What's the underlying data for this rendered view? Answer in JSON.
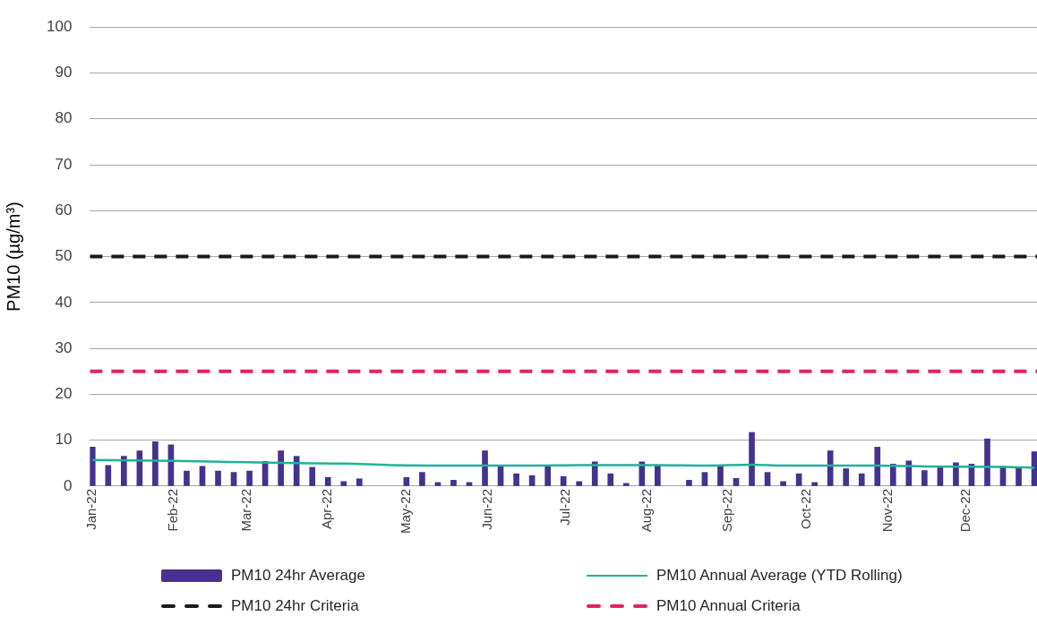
{
  "chart_data": {
    "type": "bar",
    "ylabel": "PM10 (µg/m³)",
    "x": [
      "2022-01-01",
      "2022-01-07",
      "2022-01-13",
      "2022-01-19",
      "2022-01-25",
      "2022-01-31",
      "2022-02-06",
      "2022-02-12",
      "2022-02-18",
      "2022-02-24",
      "2022-03-02",
      "2022-03-08",
      "2022-03-14",
      "2022-03-20",
      "2022-03-26",
      "2022-04-01",
      "2022-04-07",
      "2022-04-13",
      "2022-04-19",
      "2022-04-25",
      "2022-05-01",
      "2022-05-07",
      "2022-05-13",
      "2022-05-19",
      "2022-05-25",
      "2022-05-31",
      "2022-06-06",
      "2022-06-12",
      "2022-06-18",
      "2022-06-24",
      "2022-06-30",
      "2022-07-06",
      "2022-07-12",
      "2022-07-18",
      "2022-07-24",
      "2022-07-30",
      "2022-08-05",
      "2022-08-11",
      "2022-08-17",
      "2022-08-23",
      "2022-08-29",
      "2022-09-04",
      "2022-09-10",
      "2022-09-16",
      "2022-09-22",
      "2022-09-28",
      "2022-10-04",
      "2022-10-10",
      "2022-10-16",
      "2022-10-22",
      "2022-10-28",
      "2022-11-03",
      "2022-11-09",
      "2022-11-15",
      "2022-11-21",
      "2022-11-27",
      "2022-12-03",
      "2022-12-09",
      "2022-12-15",
      "2022-12-21",
      "2022-12-27"
    ],
    "series": [
      {
        "name": "PM10 24hr Average",
        "color": "#46318f",
        "values": [
          8.5,
          4.5,
          6.5,
          7.7,
          9.7,
          9.0,
          3.3,
          4.3,
          3.3,
          3.0,
          3.3,
          5.4,
          7.7,
          6.5,
          4.1,
          1.9,
          1.0,
          1.6,
          null,
          null,
          1.9,
          3.0,
          0.8,
          1.3,
          0.8,
          7.7,
          4.5,
          2.7,
          2.3,
          4.5,
          2.1,
          1.0,
          5.3,
          2.7,
          0.6,
          5.3,
          4.5,
          null,
          1.3,
          3.0,
          4.3,
          1.7,
          11.7,
          3.0,
          1.0,
          2.7,
          0.8,
          7.7,
          3.8,
          2.7,
          8.5,
          4.8,
          5.5,
          3.4,
          4.3,
          5.1,
          4.8,
          10.3,
          4.3,
          4.0,
          7.5
        ]
      },
      {
        "name": "PM10 Annual Average (YTD Rolling)",
        "type": "line",
        "color": "#1db39b",
        "x": [
          "2022-01-01",
          "2022-02-01",
          "2022-03-01",
          "2022-03-20",
          "2022-04-07",
          "2022-04-25",
          "2022-05-25",
          "2022-06-18",
          "2022-07-06",
          "2022-08-05",
          "2022-08-23",
          "2022-09-10",
          "2022-09-22",
          "2022-10-28",
          "2022-11-15",
          "2022-12-15",
          "2022-12-27"
        ],
        "values": [
          5.7,
          5.5,
          5.2,
          5.0,
          4.9,
          4.6,
          4.5,
          4.5,
          4.6,
          4.6,
          4.5,
          4.7,
          4.5,
          4.5,
          4.3,
          4.2,
          4.0
        ]
      }
    ],
    "ref_lines": [
      {
        "axis": "y",
        "value": 50,
        "label": "PM10 24hr Criteria",
        "color": "#1a1a1a",
        "line_style": "dashed"
      },
      {
        "axis": "y",
        "value": 25,
        "label": "PM10 Annual Criteria",
        "color": "#e0245e",
        "line_style": "dashed"
      }
    ],
    "xlim": [
      "2021-12-31",
      "2022-12-28"
    ],
    "xticks": [
      {
        "value": "2022-01-01",
        "label": "Jan-22"
      },
      {
        "value": "2022-02-01",
        "label": "Feb-22"
      },
      {
        "value": "2022-03-01",
        "label": "Mar-22"
      },
      {
        "value": "2022-04-01",
        "label": "Apr-22"
      },
      {
        "value": "2022-05-01",
        "label": "May-22"
      },
      {
        "value": "2022-06-01",
        "label": "Jun-22"
      },
      {
        "value": "2022-07-01",
        "label": "Jul-22"
      },
      {
        "value": "2022-08-01",
        "label": "Aug-22"
      },
      {
        "value": "2022-09-01",
        "label": "Sep-22"
      },
      {
        "value": "2022-10-01",
        "label": "Oct-22"
      },
      {
        "value": "2022-11-01",
        "label": "Nov-22"
      },
      {
        "value": "2022-12-01",
        "label": "Dec-22"
      }
    ],
    "ylim": [
      0,
      100
    ],
    "yticks": [
      0,
      10,
      20,
      30,
      40,
      50,
      60,
      70,
      80,
      90,
      100
    ],
    "grid": "y",
    "legend": "bottom"
  }
}
